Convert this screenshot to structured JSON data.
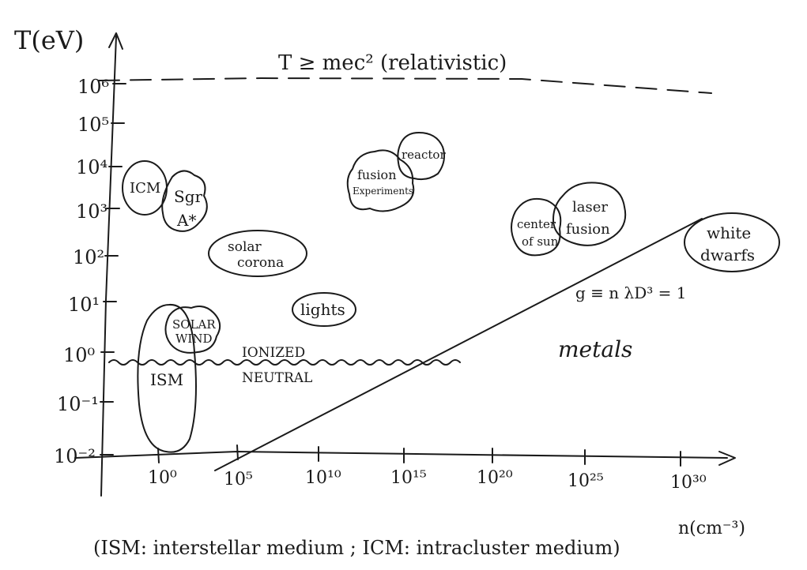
{
  "axes": {
    "y_label": "T(eV)",
    "x_label": "n(cm⁻³)",
    "y_ticks": [
      "10⁻²",
      "10⁻¹",
      "10⁰",
      "10¹",
      "10²",
      "10³",
      "10⁴",
      "10⁵",
      "10⁶"
    ],
    "x_ticks": [
      "10⁰",
      "10⁵",
      "10¹⁰",
      "10¹⁵",
      "10²⁰",
      "10²⁵",
      "10³⁰"
    ]
  },
  "annotations": {
    "relativistic": "T ≥ mec² (relativistic)",
    "ionized": "IONIZED",
    "neutral": "NEUTRAL",
    "coupling": "g ≡ n λD³ = 1",
    "metals": "metals",
    "footnote": "(ISM: interstellar medium ; ICM: intracluster medium)"
  },
  "regions": {
    "icm": "ICM",
    "sgr_line1": "Sgr",
    "sgr_line2": "A*",
    "solar_corona_line1": "solar",
    "solar_corona_line2": "corona",
    "fusion_line1": "fusion",
    "fusion_line2": "Experiments",
    "reactor": "reactor",
    "lights": "lights",
    "solar_wind_line1": "SOLAR",
    "solar_wind_line2": "WIND",
    "ism": "ISM",
    "center_sun_line1": "center",
    "center_sun_line2": "of sun",
    "laser_fusion_line1": "laser",
    "laser_fusion_line2": "fusion",
    "white_dwarfs_line1": "white",
    "white_dwarfs_line2": "dwarfs"
  }
}
